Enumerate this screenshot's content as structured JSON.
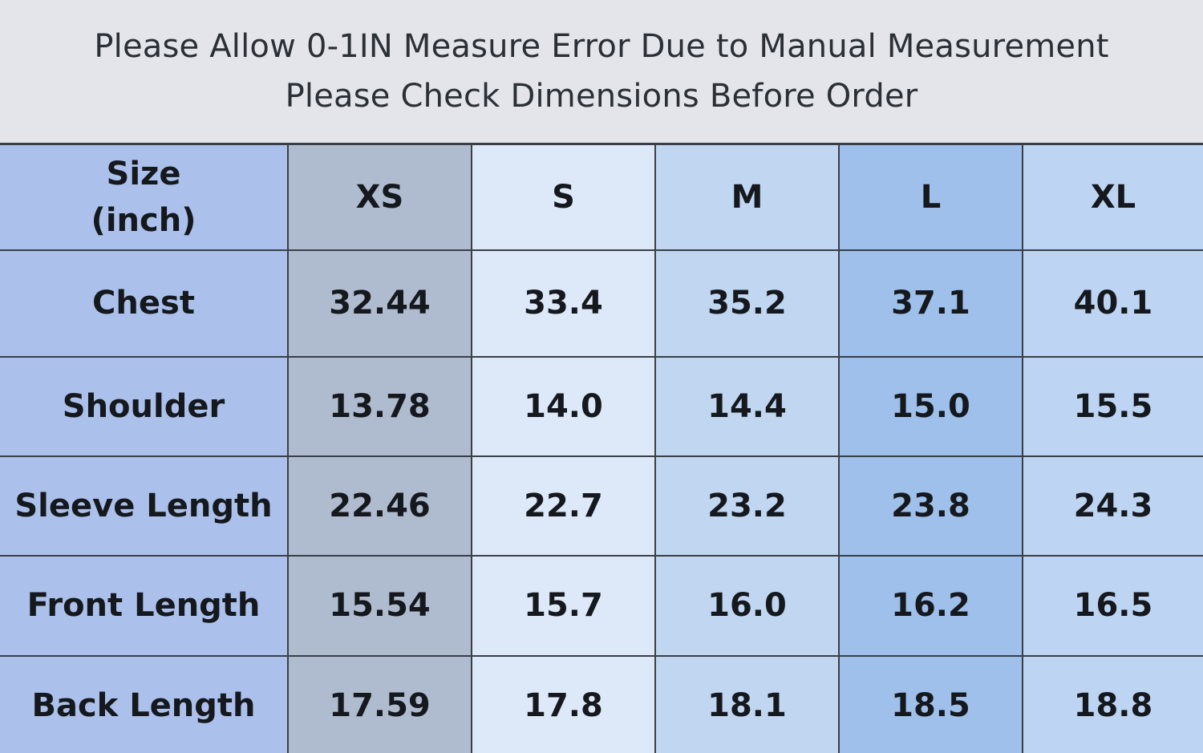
{
  "notice": {
    "line1": "Please Allow 0-1IN Measure Error Due to Manual Measurement",
    "line2": "Please Check Dimensions Before Order"
  },
  "table": {
    "header": {
      "label_line1": "Size",
      "label_line2": "(inch)",
      "sizes": [
        "XS",
        "S",
        "M",
        "L",
        "XL"
      ]
    },
    "rows": [
      {
        "label": "Chest",
        "values": [
          "32.44",
          "33.4",
          "35.2",
          "37.1",
          "40.1"
        ]
      },
      {
        "label": "Shoulder",
        "values": [
          "13.78",
          "14.0",
          "14.4",
          "15.0",
          "15.5"
        ]
      },
      {
        "label": "Sleeve Length",
        "values": [
          "22.46",
          "22.7",
          "23.2",
          "23.8",
          "24.3"
        ]
      },
      {
        "label": "Front Length",
        "values": [
          "15.54",
          "15.7",
          "16.0",
          "16.2",
          "16.5"
        ]
      },
      {
        "label": "Back Length",
        "values": [
          "17.59",
          "17.8",
          "18.1",
          "18.5",
          "18.8"
        ]
      }
    ]
  },
  "colors": {
    "label_column": "#abc1eb",
    "xs_column": "#afbccf",
    "s_column": "#dde9f8",
    "m_column": "#c0d6f1",
    "l_column": "#9ec0ea",
    "xl_column": "#bdd5f2"
  }
}
